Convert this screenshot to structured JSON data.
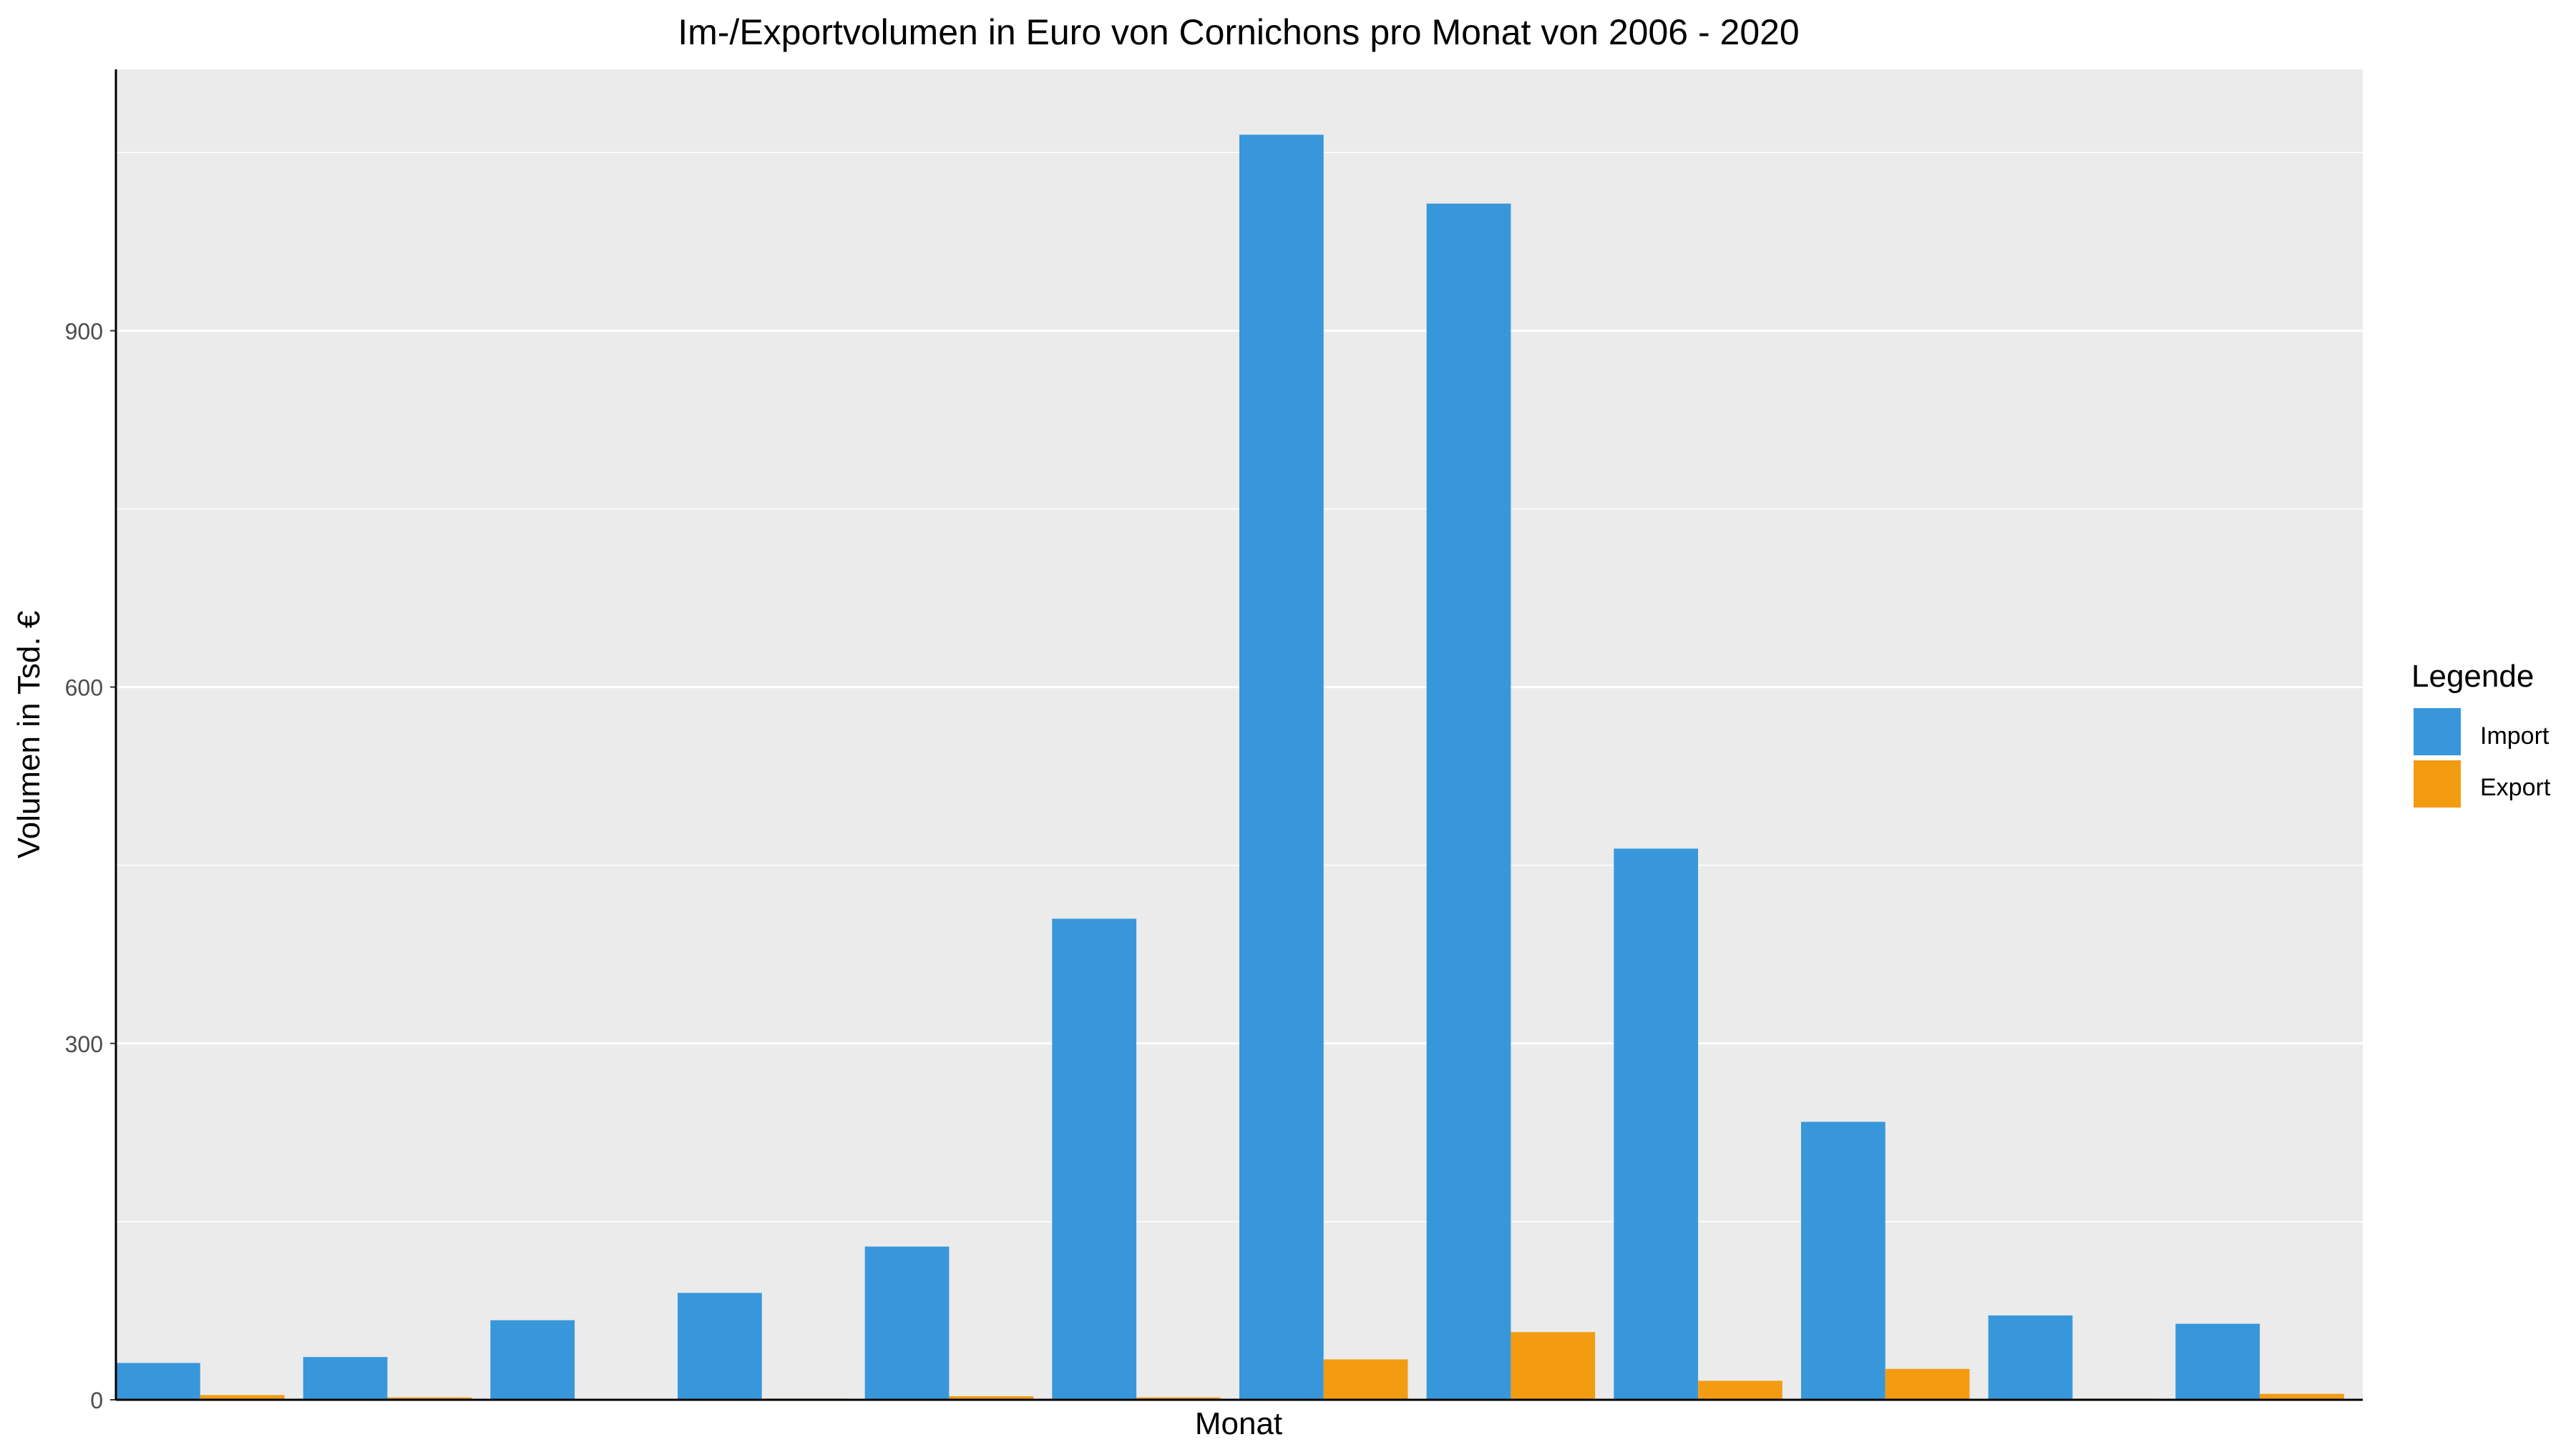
{
  "chart_data": {
    "type": "bar",
    "title": "Im-/Exportvolumen in Euro von Cornichons pro Monat von 2006 - 2020",
    "xlabel": "Monat",
    "ylabel": "Volumen in Tsd. €",
    "categories": [
      "",
      "",
      "",
      "",
      "",
      "",
      "",
      "",
      "",
      "",
      "",
      ""
    ],
    "series": [
      {
        "name": "Import",
        "color": "#3897db",
        "values": [
          31,
          36,
          67,
          90,
          129,
          405,
          1065,
          1007,
          464,
          234,
          71,
          64
        ]
      },
      {
        "name": "Export",
        "color": "#f39c12",
        "values": [
          4,
          2,
          0,
          1,
          3,
          2,
          34,
          57,
          16,
          26,
          1,
          5
        ]
      }
    ],
    "ylim": [
      0,
      1120
    ],
    "yticks": [
      0,
      300,
      600,
      900
    ],
    "ytick_labels": [
      "0",
      "300",
      "600",
      "900"
    ],
    "grid": true,
    "panel_background": "#ebebeb",
    "legend": {
      "title": "Legende",
      "position": "right",
      "items": [
        "Import",
        "Export"
      ]
    }
  }
}
